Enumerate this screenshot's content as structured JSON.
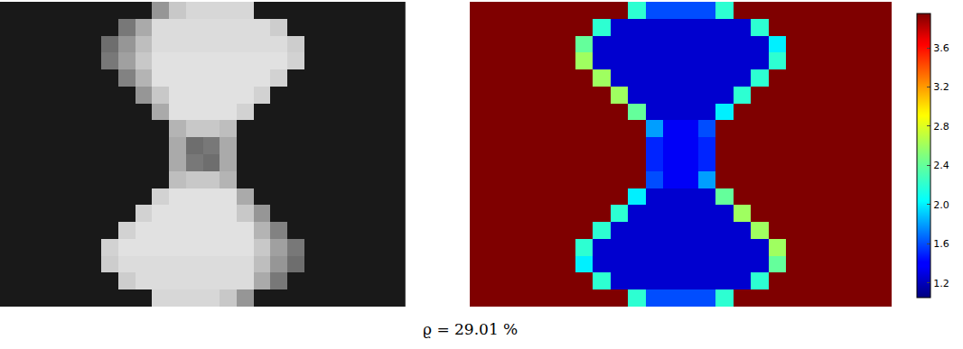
{
  "caption": "ϱ = 29.01 %",
  "chart_data": [
    {
      "type": "heatmap",
      "color": "gray",
      "tick_labels": false,
      "zlim": [
        0,
        255
      ],
      "z": [
        [
          25,
          25,
          25,
          25,
          25,
          25,
          25,
          25,
          25,
          150,
          200,
          215,
          215,
          215,
          215,
          25,
          25,
          25,
          25,
          25,
          25,
          25,
          25,
          25
        ],
        [
          25,
          25,
          25,
          25,
          25,
          25,
          25,
          120,
          170,
          220,
          220,
          220,
          220,
          220,
          220,
          220,
          205,
          25,
          25,
          25,
          25,
          25,
          25,
          25
        ],
        [
          25,
          25,
          25,
          25,
          25,
          25,
          110,
          150,
          190,
          220,
          220,
          220,
          220,
          220,
          220,
          220,
          220,
          205,
          25,
          25,
          25,
          25,
          25,
          25
        ],
        [
          25,
          25,
          25,
          25,
          25,
          25,
          120,
          160,
          200,
          225,
          225,
          225,
          225,
          225,
          225,
          225,
          225,
          210,
          25,
          25,
          25,
          25,
          25,
          25
        ],
        [
          25,
          25,
          25,
          25,
          25,
          25,
          25,
          130,
          180,
          225,
          225,
          225,
          225,
          225,
          225,
          225,
          210,
          25,
          25,
          25,
          25,
          25,
          25,
          25
        ],
        [
          25,
          25,
          25,
          25,
          25,
          25,
          25,
          25,
          150,
          200,
          225,
          225,
          225,
          225,
          225,
          210,
          25,
          25,
          25,
          25,
          25,
          25,
          25,
          25
        ],
        [
          25,
          25,
          25,
          25,
          25,
          25,
          25,
          25,
          25,
          170,
          225,
          225,
          225,
          225,
          210,
          25,
          25,
          25,
          25,
          25,
          25,
          25,
          25,
          25
        ],
        [
          25,
          25,
          25,
          25,
          25,
          25,
          25,
          25,
          25,
          25,
          180,
          200,
          200,
          190,
          25,
          25,
          25,
          25,
          25,
          25,
          25,
          25,
          25,
          25
        ],
        [
          25,
          25,
          25,
          25,
          25,
          25,
          25,
          25,
          25,
          25,
          170,
          110,
          120,
          170,
          25,
          25,
          25,
          25,
          25,
          25,
          25,
          25,
          25,
          25
        ],
        [
          25,
          25,
          25,
          25,
          25,
          25,
          25,
          25,
          25,
          25,
          170,
          120,
          110,
          170,
          25,
          25,
          25,
          25,
          25,
          25,
          25,
          25,
          25,
          25
        ],
        [
          25,
          25,
          25,
          25,
          25,
          25,
          25,
          25,
          25,
          25,
          190,
          200,
          200,
          180,
          25,
          25,
          25,
          25,
          25,
          25,
          25,
          25,
          25,
          25
        ],
        [
          25,
          25,
          25,
          25,
          25,
          25,
          25,
          25,
          25,
          210,
          225,
          225,
          225,
          225,
          170,
          25,
          25,
          25,
          25,
          25,
          25,
          25,
          25,
          25
        ],
        [
          25,
          25,
          25,
          25,
          25,
          25,
          25,
          25,
          210,
          225,
          225,
          225,
          225,
          225,
          200,
          150,
          25,
          25,
          25,
          25,
          25,
          25,
          25,
          25
        ],
        [
          25,
          25,
          25,
          25,
          25,
          25,
          25,
          210,
          225,
          225,
          225,
          225,
          225,
          225,
          225,
          180,
          130,
          25,
          25,
          25,
          25,
          25,
          25,
          25
        ],
        [
          25,
          25,
          25,
          25,
          25,
          25,
          210,
          225,
          225,
          225,
          225,
          225,
          225,
          225,
          225,
          200,
          160,
          120,
          25,
          25,
          25,
          25,
          25,
          25
        ],
        [
          25,
          25,
          25,
          25,
          25,
          25,
          205,
          220,
          220,
          220,
          220,
          220,
          220,
          220,
          220,
          190,
          150,
          110,
          25,
          25,
          25,
          25,
          25,
          25
        ],
        [
          25,
          25,
          25,
          25,
          25,
          25,
          25,
          205,
          220,
          220,
          220,
          220,
          220,
          220,
          220,
          170,
          120,
          25,
          25,
          25,
          25,
          25,
          25,
          25
        ],
        [
          25,
          25,
          25,
          25,
          25,
          25,
          25,
          25,
          25,
          215,
          215,
          215,
          215,
          200,
          150,
          25,
          25,
          25,
          25,
          25,
          25,
          25,
          25,
          25
        ]
      ]
    },
    {
      "type": "heatmap",
      "color": "jet",
      "tick_labels": false,
      "zlim": [
        1.05,
        3.95
      ],
      "zticks": [
        1.2,
        1.6,
        {
          "value": 2,
          "label": "2.0"
        },
        2.4,
        2.8,
        3.2,
        3.6
      ],
      "z": [
        [
          3.95,
          3.95,
          3.95,
          3.95,
          3.95,
          3.95,
          3.95,
          3.95,
          3.95,
          2.2,
          1.6,
          1.6,
          1.6,
          1.6,
          2.2,
          3.95,
          3.95,
          3.95,
          3.95,
          3.95,
          3.95,
          3.95,
          3.95,
          3.95
        ],
        [
          3.95,
          3.95,
          3.95,
          3.95,
          3.95,
          3.95,
          3.95,
          2.2,
          1.25,
          1.25,
          1.25,
          1.25,
          1.25,
          1.25,
          1.25,
          1.25,
          2.2,
          3.95,
          3.95,
          3.95,
          3.95,
          3.95,
          3.95,
          3.95
        ],
        [
          3.95,
          3.95,
          3.95,
          3.95,
          3.95,
          3.95,
          2.4,
          1.25,
          1.25,
          1.25,
          1.25,
          1.25,
          1.25,
          1.25,
          1.25,
          1.25,
          1.25,
          2.0,
          3.95,
          3.95,
          3.95,
          3.95,
          3.95,
          3.95
        ],
        [
          3.95,
          3.95,
          3.95,
          3.95,
          3.95,
          3.95,
          2.6,
          1.25,
          1.25,
          1.25,
          1.25,
          1.25,
          1.25,
          1.25,
          1.25,
          1.25,
          1.25,
          2.2,
          3.95,
          3.95,
          3.95,
          3.95,
          3.95,
          3.95
        ],
        [
          3.95,
          3.95,
          3.95,
          3.95,
          3.95,
          3.95,
          3.95,
          2.6,
          1.25,
          1.25,
          1.25,
          1.25,
          1.25,
          1.25,
          1.25,
          1.25,
          2.2,
          3.95,
          3.95,
          3.95,
          3.95,
          3.95,
          3.95,
          3.95
        ],
        [
          3.95,
          3.95,
          3.95,
          3.95,
          3.95,
          3.95,
          3.95,
          3.95,
          2.6,
          1.25,
          1.25,
          1.25,
          1.25,
          1.25,
          1.25,
          2.2,
          3.95,
          3.95,
          3.95,
          3.95,
          3.95,
          3.95,
          3.95,
          3.95
        ],
        [
          3.95,
          3.95,
          3.95,
          3.95,
          3.95,
          3.95,
          3.95,
          3.95,
          3.95,
          2.4,
          1.25,
          1.25,
          1.25,
          1.25,
          2.0,
          3.95,
          3.95,
          3.95,
          3.95,
          3.95,
          3.95,
          3.95,
          3.95,
          3.95
        ],
        [
          3.95,
          3.95,
          3.95,
          3.95,
          3.95,
          3.95,
          3.95,
          3.95,
          3.95,
          3.95,
          1.8,
          1.35,
          1.35,
          1.6,
          3.95,
          3.95,
          3.95,
          3.95,
          3.95,
          3.95,
          3.95,
          3.95,
          3.95,
          3.95
        ],
        [
          3.95,
          3.95,
          3.95,
          3.95,
          3.95,
          3.95,
          3.95,
          3.95,
          3.95,
          3.95,
          1.5,
          1.35,
          1.35,
          1.5,
          3.95,
          3.95,
          3.95,
          3.95,
          3.95,
          3.95,
          3.95,
          3.95,
          3.95,
          3.95
        ],
        [
          3.95,
          3.95,
          3.95,
          3.95,
          3.95,
          3.95,
          3.95,
          3.95,
          3.95,
          3.95,
          1.5,
          1.35,
          1.35,
          1.5,
          3.95,
          3.95,
          3.95,
          3.95,
          3.95,
          3.95,
          3.95,
          3.95,
          3.95,
          3.95
        ],
        [
          3.95,
          3.95,
          3.95,
          3.95,
          3.95,
          3.95,
          3.95,
          3.95,
          3.95,
          3.95,
          1.6,
          1.35,
          1.35,
          1.8,
          3.95,
          3.95,
          3.95,
          3.95,
          3.95,
          3.95,
          3.95,
          3.95,
          3.95,
          3.95
        ],
        [
          3.95,
          3.95,
          3.95,
          3.95,
          3.95,
          3.95,
          3.95,
          3.95,
          3.95,
          2.0,
          1.25,
          1.25,
          1.25,
          1.25,
          2.4,
          3.95,
          3.95,
          3.95,
          3.95,
          3.95,
          3.95,
          3.95,
          3.95,
          3.95
        ],
        [
          3.95,
          3.95,
          3.95,
          3.95,
          3.95,
          3.95,
          3.95,
          3.95,
          2.2,
          1.25,
          1.25,
          1.25,
          1.25,
          1.25,
          1.25,
          2.6,
          3.95,
          3.95,
          3.95,
          3.95,
          3.95,
          3.95,
          3.95,
          3.95
        ],
        [
          3.95,
          3.95,
          3.95,
          3.95,
          3.95,
          3.95,
          3.95,
          2.2,
          1.25,
          1.25,
          1.25,
          1.25,
          1.25,
          1.25,
          1.25,
          1.25,
          2.6,
          3.95,
          3.95,
          3.95,
          3.95,
          3.95,
          3.95,
          3.95
        ],
        [
          3.95,
          3.95,
          3.95,
          3.95,
          3.95,
          3.95,
          2.2,
          1.25,
          1.25,
          1.25,
          1.25,
          1.25,
          1.25,
          1.25,
          1.25,
          1.25,
          1.25,
          2.6,
          3.95,
          3.95,
          3.95,
          3.95,
          3.95,
          3.95
        ],
        [
          3.95,
          3.95,
          3.95,
          3.95,
          3.95,
          3.95,
          2.0,
          1.25,
          1.25,
          1.25,
          1.25,
          1.25,
          1.25,
          1.25,
          1.25,
          1.25,
          1.25,
          2.4,
          3.95,
          3.95,
          3.95,
          3.95,
          3.95,
          3.95
        ],
        [
          3.95,
          3.95,
          3.95,
          3.95,
          3.95,
          3.95,
          3.95,
          2.2,
          1.25,
          1.25,
          1.25,
          1.25,
          1.25,
          1.25,
          1.25,
          1.25,
          2.2,
          3.95,
          3.95,
          3.95,
          3.95,
          3.95,
          3.95,
          3.95
        ],
        [
          3.95,
          3.95,
          3.95,
          3.95,
          3.95,
          3.95,
          3.95,
          3.95,
          3.95,
          2.2,
          1.6,
          1.6,
          1.6,
          1.6,
          2.2,
          3.95,
          3.95,
          3.95,
          3.95,
          3.95,
          3.95,
          3.95,
          3.95,
          3.95
        ]
      ]
    }
  ]
}
